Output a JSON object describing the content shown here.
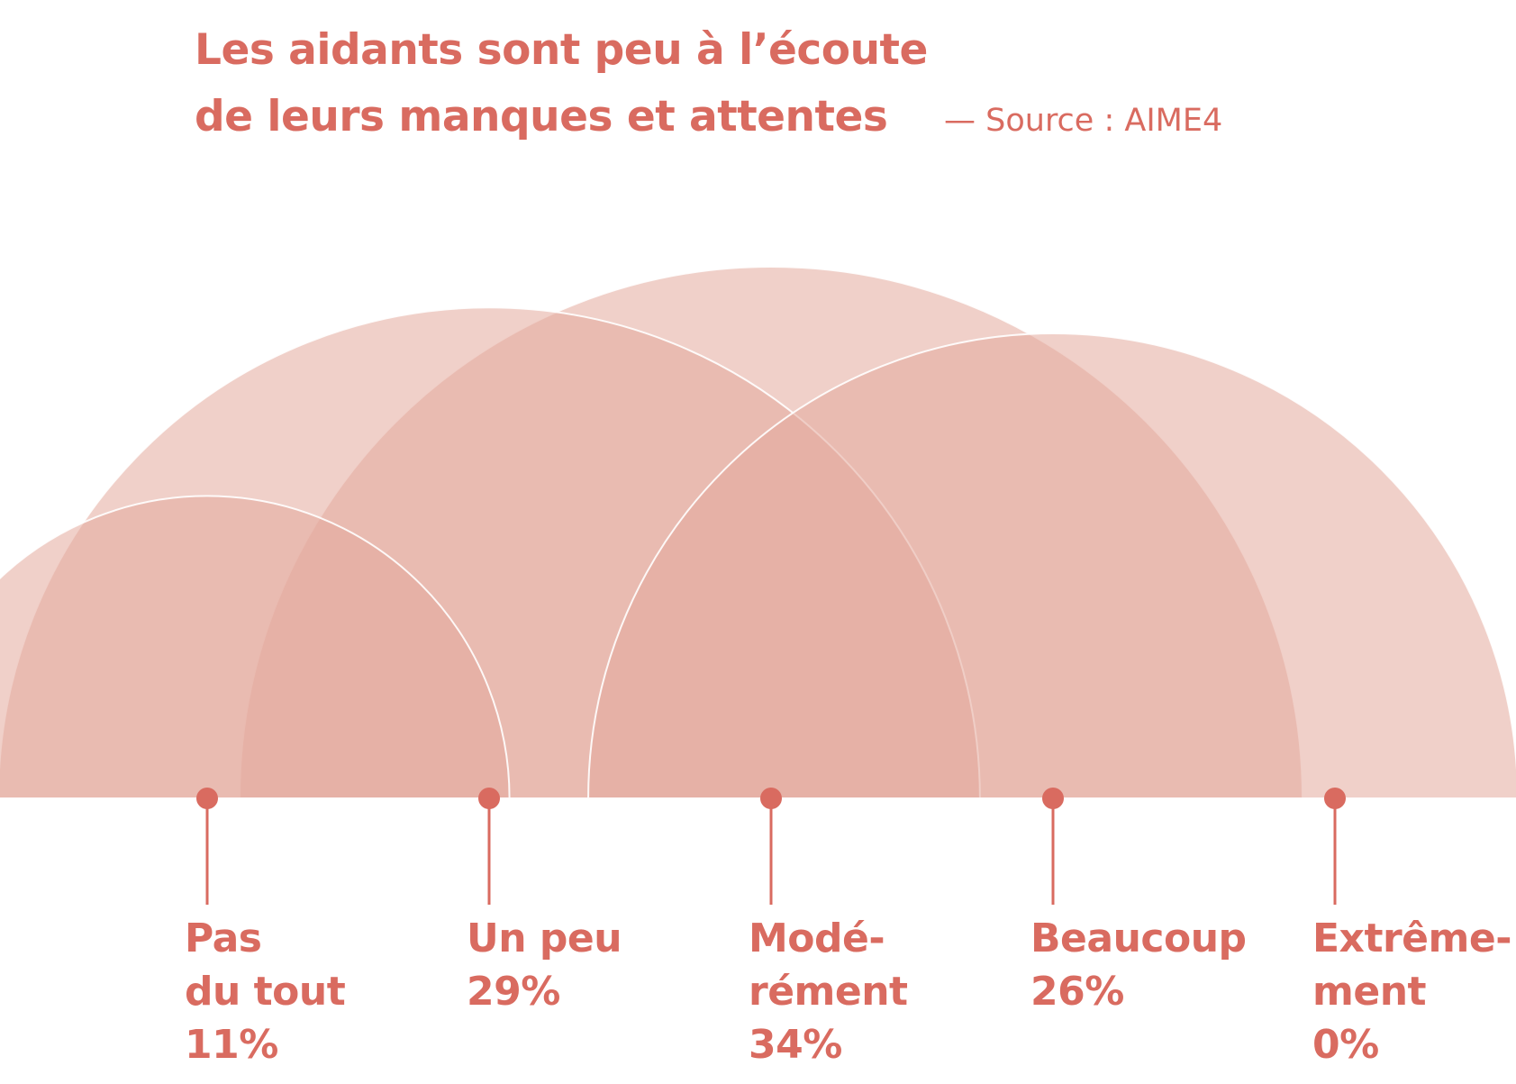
{
  "title": {
    "line1": "Les aidants sont peu à l’écoute",
    "line2": "de leurs manques et attentes"
  },
  "source": "— Source : AIME4",
  "colors": {
    "accent": "#d96b60",
    "semicircle_fill": "#e4a99c",
    "semicircle_stroke": "#ffffff",
    "background": "#ffffff"
  },
  "chart_data": {
    "type": "semicircle-area",
    "title": "Les aidants sont peu à l’écoute de leurs manques et attentes",
    "source": "— Source : AIME4",
    "categories": [
      "Pas du tout",
      "Un peu",
      "Modérément",
      "Beaucoup",
      "Extrêmement"
    ],
    "values": [
      11,
      29,
      34,
      26,
      0
    ],
    "unit": "%",
    "labels": [
      {
        "lines": [
          "Pas",
          "du tout",
          "11%"
        ]
      },
      {
        "lines": [
          "Un peu",
          "29%"
        ]
      },
      {
        "lines": [
          "Modé-",
          "rément",
          "34%"
        ]
      },
      {
        "lines": [
          "Beaucoup",
          "26%"
        ]
      },
      {
        "lines": [
          "Extrême-",
          "ment",
          "0%"
        ]
      }
    ]
  }
}
